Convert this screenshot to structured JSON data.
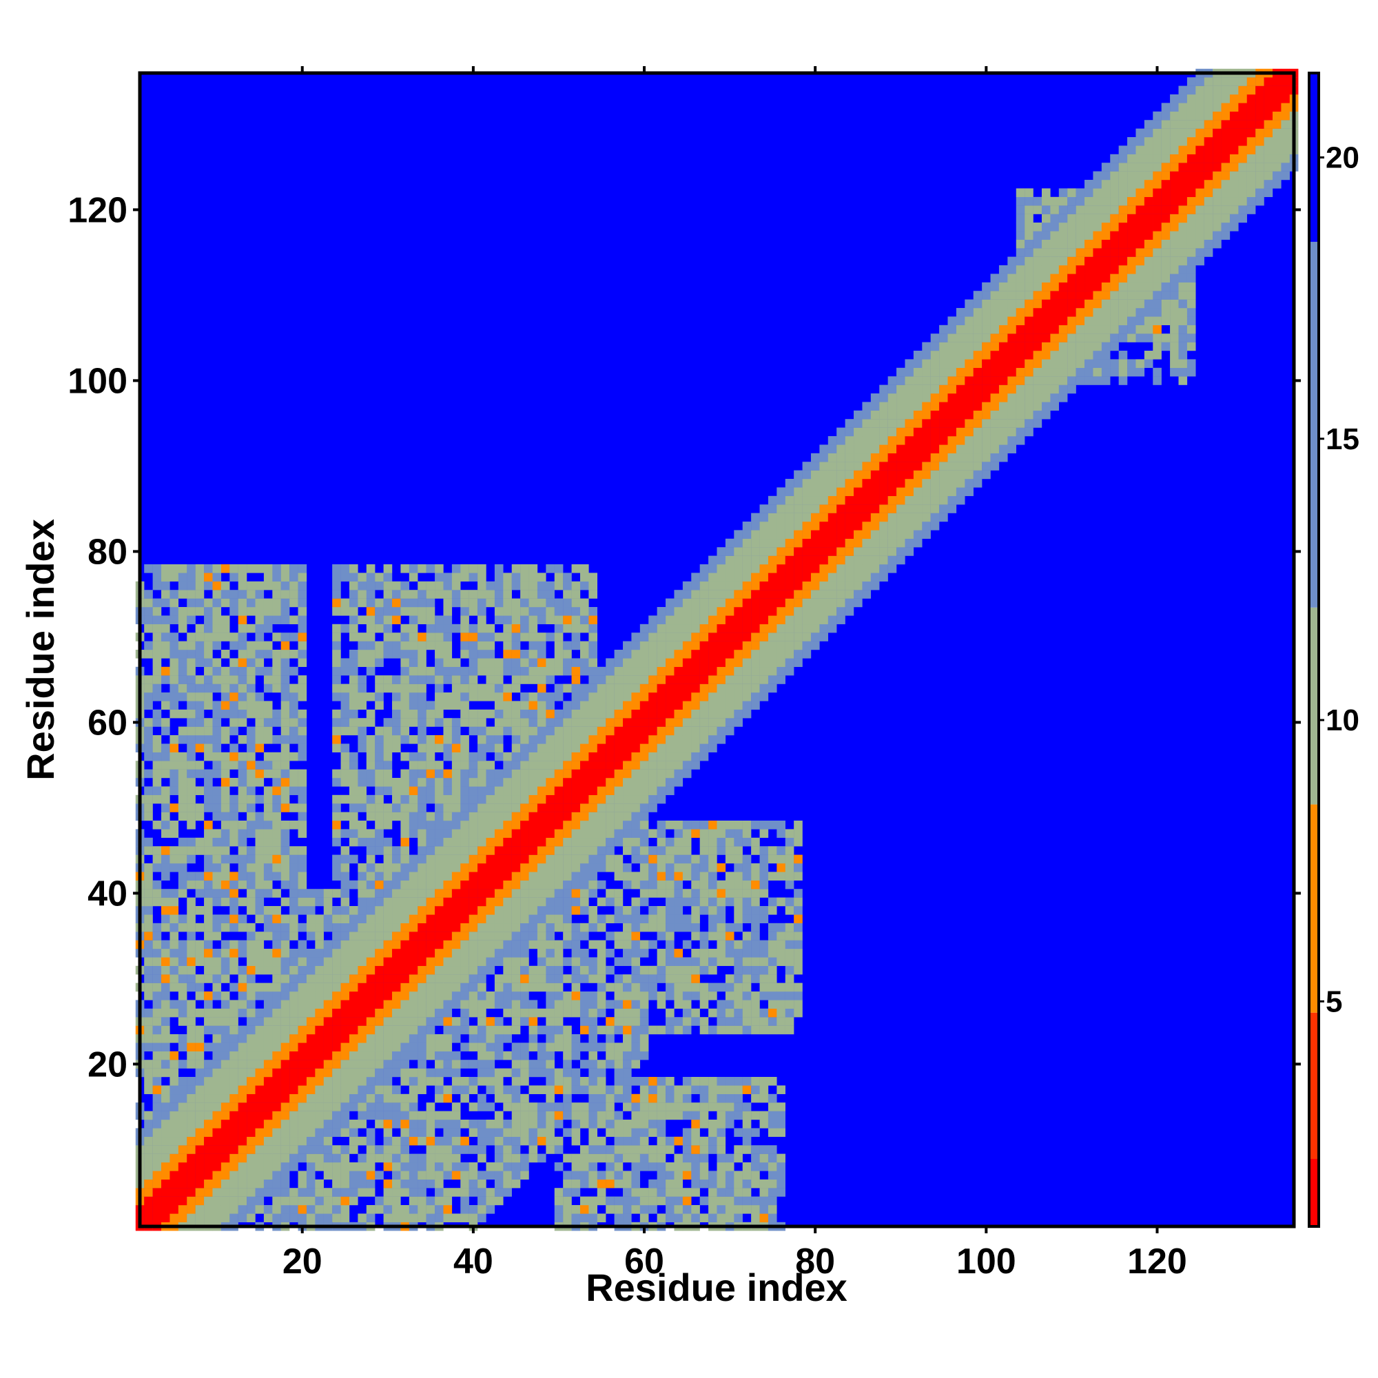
{
  "chart_data": {
    "type": "heatmap",
    "title": "",
    "xlabel": "Residue index",
    "ylabel": "Residue index",
    "xlim": [
      1,
      136
    ],
    "ylim": [
      1,
      136
    ],
    "x_ticks": [
      20,
      40,
      60,
      80,
      100,
      120
    ],
    "y_ticks": [
      20,
      40,
      60,
      80,
      100,
      120
    ],
    "colorbar": {
      "range": [
        1,
        21.5
      ],
      "ticks": [
        5,
        10,
        15,
        20
      ],
      "colors": {
        "near": "#ff0000",
        "close": "#ff8c00",
        "mid": "#9fb690",
        "far": "#6f8fc8",
        "background": "#0000ff"
      }
    },
    "description_values": {
      "diagonal_distance": 1,
      "band_distance_near": 5,
      "band_distance_mid": 10,
      "background_distance": 21
    }
  }
}
